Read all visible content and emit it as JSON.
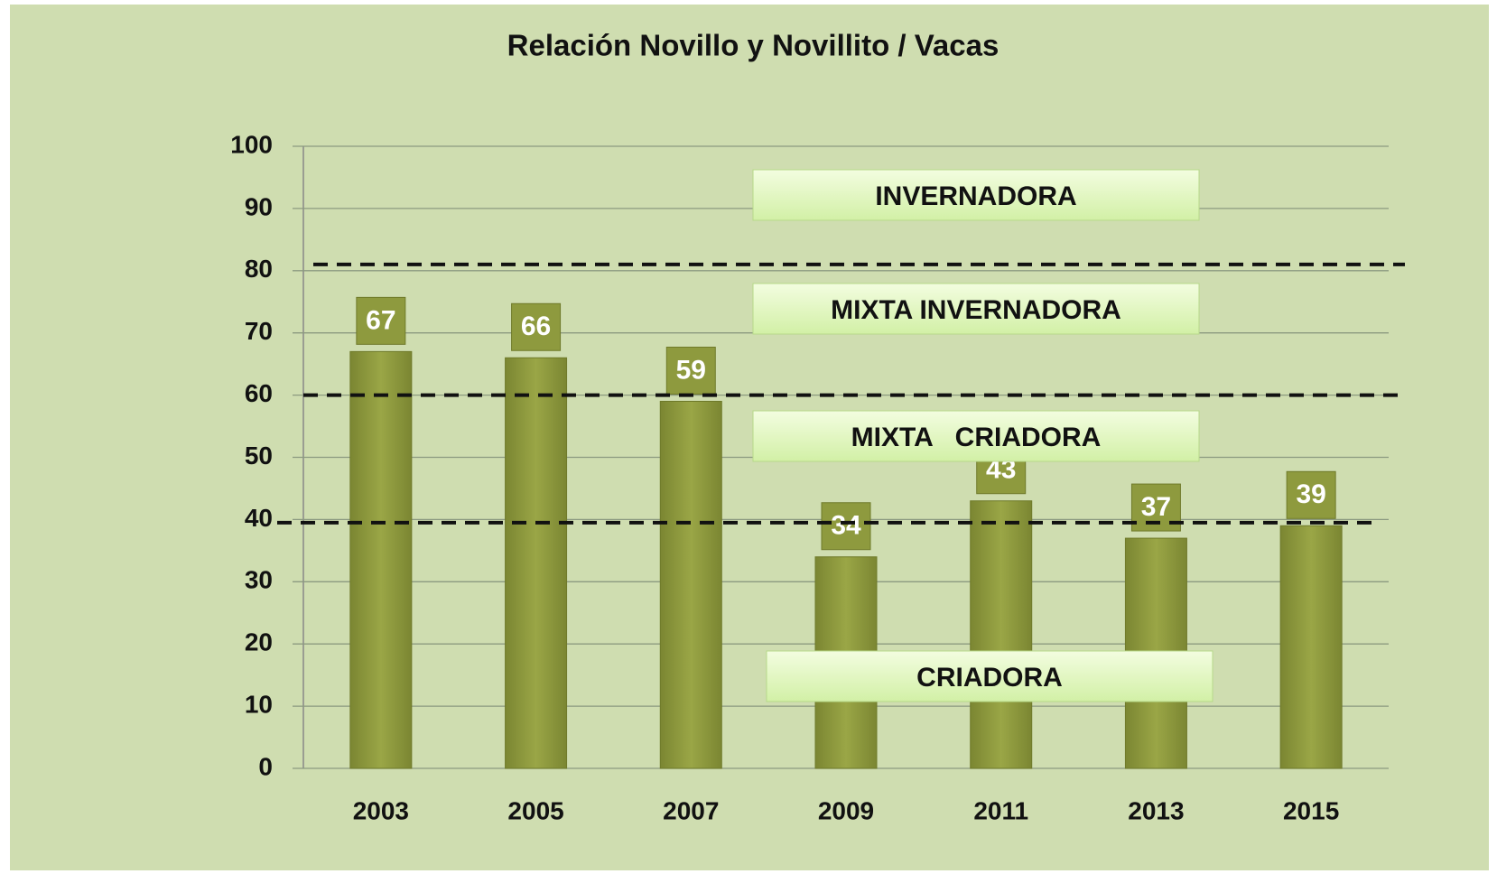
{
  "chart_data": {
    "type": "bar",
    "title": "Relación Novillo y Novillito / Vacas",
    "categories": [
      "2003",
      "2005",
      "2007",
      "2009",
      "2011",
      "2013",
      "2015"
    ],
    "values": [
      67,
      66,
      59,
      34,
      43,
      37,
      39
    ],
    "color": "#8e9a3e",
    "ylim": [
      0,
      100
    ],
    "yticks": [
      0,
      10,
      20,
      30,
      40,
      50,
      60,
      70,
      80,
      90,
      100
    ],
    "grid": true,
    "reference_lines": [
      81,
      60,
      39.5
    ],
    "annotations": [
      "INVERNADORA",
      "MIXTA INVERNADORA",
      "MIXTA   CRIADORA",
      "CRIADORA"
    ]
  }
}
